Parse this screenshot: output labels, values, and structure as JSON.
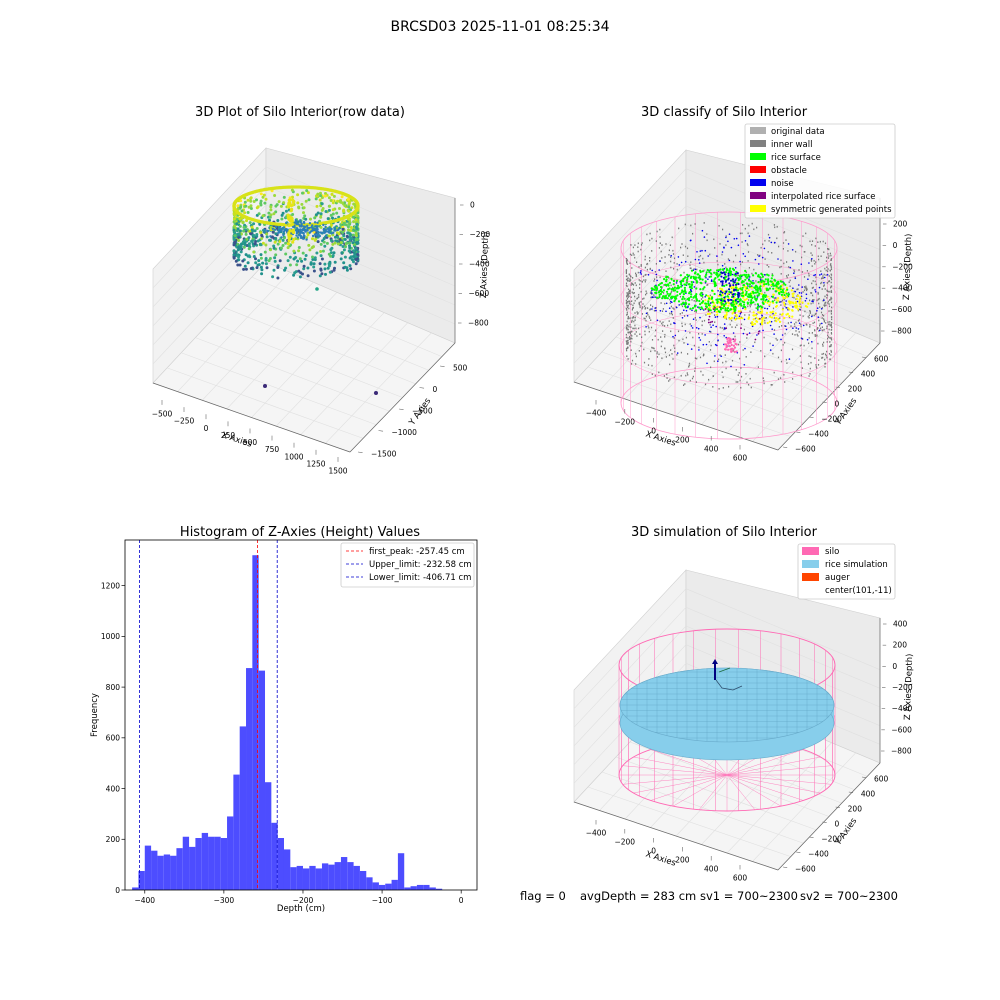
{
  "figure": {
    "title": "BRCSD03 2025-11-01 08:25:34",
    "status": {
      "flag": "flag = 0",
      "avg_depth": "avgDepth = 283 cm",
      "sv1": "sv1 = 700~2300",
      "sv2": "sv2 = 700~2300"
    }
  },
  "panel1": {
    "title": "3D Plot of Silo Interior(row data)",
    "xlabel": "X Axies",
    "ylabel": "Y Axies",
    "zlabel": "Z Axies (Depth)",
    "x_ticks": [
      "−500",
      "−250",
      "0",
      "250",
      "500",
      "750",
      "1000",
      "1250",
      "1500"
    ],
    "y_ticks": [
      "500",
      "0",
      "−500",
      "−1000",
      "−1500"
    ],
    "z_ticks": [
      "0",
      "−200",
      "−400",
      "−600",
      "−800"
    ],
    "colormap": "viridis"
  },
  "panel2": {
    "title": "3D classify of Silo Interior",
    "xlabel": "X Axies",
    "ylabel": "Y Axies",
    "zlabel": "Z Axies (Depth)",
    "x_ticks": [
      "−400",
      "−200",
      "0",
      "200",
      "400",
      "600"
    ],
    "y_ticks": [
      "600",
      "400",
      "200",
      "0",
      "−200",
      "−400",
      "−600"
    ],
    "z_ticks": [
      "200",
      "0",
      "−200",
      "−400",
      "−600",
      "−800"
    ],
    "legend": [
      {
        "label": "original data",
        "color": "#b0b0b0"
      },
      {
        "label": "inner wall",
        "color": "#808080"
      },
      {
        "label": "rice surface",
        "color": "#00ff00"
      },
      {
        "label": "obstacle",
        "color": "#ff0000"
      },
      {
        "label": "noise",
        "color": "#0000ee"
      },
      {
        "label": "interpolated rice surface",
        "color": "#800080"
      },
      {
        "label": "symmetric generated points",
        "color": "#ffff00"
      }
    ],
    "silo_color": "#ff99cc"
  },
  "panel4": {
    "title": "3D simulation of Silo Interior",
    "xlabel": "X Axies",
    "ylabel": "Y Axies",
    "zlabel": "Z Axies (Depth)",
    "x_ticks": [
      "−400",
      "−200",
      "0",
      "200",
      "400",
      "600"
    ],
    "y_ticks": [
      "600",
      "400",
      "200",
      "0",
      "−200",
      "−400",
      "−600"
    ],
    "z_ticks": [
      "400",
      "200",
      "0",
      "−200",
      "−400",
      "−600",
      "−800"
    ],
    "legend": [
      {
        "label": "silo",
        "color": "#ff69b4"
      },
      {
        "label": "rice simulation",
        "color": "#87ceeb"
      },
      {
        "label": "auger",
        "color": "#ff4500"
      },
      {
        "label": "center(101,-11)",
        "color": "#ffffff"
      }
    ]
  },
  "chart_data": [
    {
      "type": "bar",
      "title": "Histogram of Z-Axies (Height) Values",
      "xlabel": "Depth (cm)",
      "ylabel": "Frequency",
      "xlim": [
        -425,
        20
      ],
      "ylim": [
        0,
        1380
      ],
      "x_ticks": [
        -400,
        -300,
        -200,
        -100,
        0
      ],
      "x_tick_labels": [
        "−400",
        "−300",
        "−200",
        "−100",
        "0"
      ],
      "y_ticks": [
        0,
        200,
        400,
        600,
        800,
        1000,
        1200
      ],
      "bin_width": 8,
      "bin_start": -416,
      "color": "#4d4dff",
      "values": [
        10,
        75,
        175,
        155,
        135,
        140,
        135,
        165,
        210,
        170,
        205,
        225,
        210,
        210,
        205,
        290,
        455,
        645,
        875,
        1320,
        865,
        425,
        265,
        205,
        160,
        90,
        95,
        85,
        95,
        85,
        105,
        100,
        110,
        130,
        110,
        95,
        75,
        50,
        30,
        20,
        25,
        40,
        145,
        10,
        15,
        20,
        20,
        10,
        5
      ],
      "lines": [
        {
          "label": "first_peak: -257.45 cm",
          "x": -257.45,
          "color": "#ff0000"
        },
        {
          "label": "Upper_limit: -232.58 cm",
          "x": -232.58,
          "color": "#0000cc"
        },
        {
          "label": "Lower_limit: -406.71 cm",
          "x": -406.71,
          "color": "#0000cc"
        }
      ],
      "legend_position": "upper right"
    }
  ]
}
